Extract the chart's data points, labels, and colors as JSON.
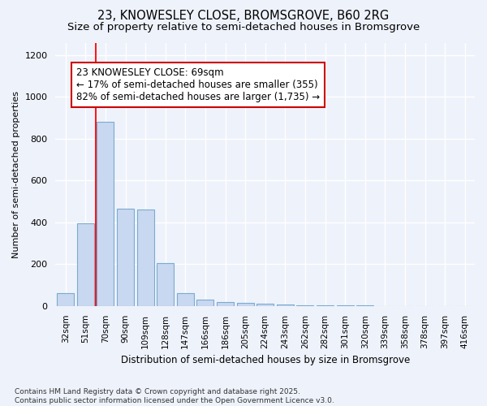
{
  "title": "23, KNOWESLEY CLOSE, BROMSGROVE, B60 2RG",
  "subtitle": "Size of property relative to semi-detached houses in Bromsgrove",
  "xlabel": "Distribution of semi-detached houses by size in Bromsgrove",
  "ylabel": "Number of semi-detached properties",
  "categories": [
    "32sqm",
    "51sqm",
    "70sqm",
    "90sqm",
    "109sqm",
    "128sqm",
    "147sqm",
    "166sqm",
    "186sqm",
    "205sqm",
    "224sqm",
    "243sqm",
    "262sqm",
    "282sqm",
    "301sqm",
    "320sqm",
    "339sqm",
    "358sqm",
    "378sqm",
    "397sqm",
    "416sqm"
  ],
  "values": [
    60,
    395,
    880,
    465,
    462,
    205,
    62,
    30,
    20,
    13,
    10,
    8,
    4,
    3,
    2,
    2,
    1,
    1,
    1,
    0,
    0
  ],
  "bar_color": "#c8d8f0",
  "bar_edge_color": "#7aabcf",
  "red_line_x": 1.5,
  "annotation_text_line1": "23 KNOWESLEY CLOSE: 69sqm",
  "annotation_text_line2": "← 17% of semi-detached houses are smaller (355)",
  "annotation_text_line3": "82% of semi-detached houses are larger (1,735) →",
  "ylim": [
    0,
    1260
  ],
  "yticks": [
    0,
    200,
    400,
    600,
    800,
    1000,
    1200
  ],
  "footnote": "Contains HM Land Registry data © Crown copyright and database right 2025.\nContains public sector information licensed under the Open Government Licence v3.0.",
  "bg_color": "#eef2fb",
  "plot_bg_color": "#eef2fb",
  "grid_color": "#ffffff",
  "title_fontsize": 10.5,
  "subtitle_fontsize": 9.5,
  "annotation_box_facecolor": "#ffffff",
  "annotation_box_edgecolor": "#cc0000",
  "annotation_fontsize": 8.5
}
